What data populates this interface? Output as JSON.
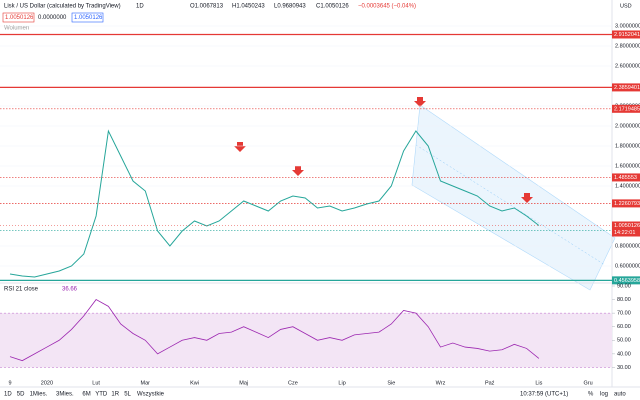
{
  "header": {
    "symbol": "Lisk / US Dollar (calculated by TradingView)",
    "interval": "1D",
    "open": "O1.0067813",
    "high": "H1.0450243",
    "low": "L0.9680943",
    "close": "C1.0050126",
    "change": "−0.0003645 (−0.04%)",
    "bid": "1.0050126",
    "spread": "0.0000000",
    "ask": "1.0050126",
    "volume": "Wolumen",
    "currency": "USD",
    "countdown": "14:22:01"
  },
  "toolbar": {
    "ranges": [
      "1D",
      "5D",
      "1Mies.",
      "3Mies.",
      "6M",
      "YTD",
      "1R",
      "5L",
      "Wszystkie"
    ],
    "clock": "10:37:59 (UTC+1)",
    "percent": "%",
    "log": "log",
    "auto": "auto"
  },
  "chart_data": {
    "type": "line",
    "color": "#26a69a",
    "categories": [
      "9",
      null,
      null,
      "2020",
      null,
      null,
      null,
      "Lut",
      null,
      null,
      null,
      "Mar",
      null,
      null,
      null,
      "Kwi",
      null,
      null,
      null,
      "Maj",
      null,
      null,
      null,
      "Cze",
      null,
      null,
      null,
      "Lip",
      null,
      null,
      null,
      "Sie",
      null,
      null,
      null,
      "Wrz",
      null,
      null,
      null,
      "Paź",
      null,
      null,
      null,
      "Lis"
    ],
    "values": [
      0.52,
      0.5,
      0.49,
      0.52,
      0.55,
      0.6,
      0.72,
      1.1,
      1.95,
      1.7,
      1.45,
      1.35,
      0.95,
      0.8,
      0.95,
      1.05,
      1.0,
      1.05,
      1.15,
      1.25,
      1.2,
      1.15,
      1.25,
      1.3,
      1.28,
      1.18,
      1.2,
      1.15,
      1.18,
      1.22,
      1.25,
      1.4,
      1.75,
      1.95,
      1.8,
      1.45,
      1.4,
      1.35,
      1.3,
      1.2,
      1.15,
      1.18,
      1.1,
      1.0050126
    ],
    "ylim": [
      0.45,
      3.26
    ],
    "yticks": [
      {
        "value": 0.6,
        "label": "0.6000000"
      },
      {
        "value": 0.8,
        "label": "0.8000000"
      },
      {
        "value": 1.4,
        "label": "1.4000000"
      },
      {
        "value": 1.6,
        "label": "1.6000000"
      },
      {
        "value": 1.8,
        "label": "1.8000000"
      },
      {
        "value": 2.0,
        "label": "2.0000000"
      },
      {
        "value": 2.2,
        "label": "2.2000000"
      },
      {
        "value": 2.6,
        "label": "2.6000000"
      },
      {
        "value": 2.8,
        "label": "2.8000000"
      },
      {
        "value": 3.0,
        "label": "3.0000000"
      }
    ],
    "next_month": "Gru",
    "levels": [
      {
        "value": 2.9152041,
        "color": "#e53935",
        "style": "solid"
      },
      {
        "value": 2.3859401,
        "color": "#e53935",
        "style": "solid"
      },
      {
        "value": 2.1719485,
        "color": "#e53935",
        "style": "dotted"
      },
      {
        "value": 1.485553,
        "color": "#e53935",
        "style": "dotted"
      },
      {
        "value": 1.2260793,
        "color": "#e53935",
        "style": "dotted"
      },
      {
        "value": 0.9556124,
        "color": "#26a69a",
        "style": "dotted"
      },
      {
        "value": 0.4563958,
        "color": "#26a69a",
        "style": "solid"
      }
    ],
    "rsi": {
      "label": "RSI 21 close",
      "color": "#9c27b0",
      "band": [
        30,
        70
      ],
      "ylim": [
        20,
        90
      ],
      "yticks": [
        {
          "value": 30,
          "label": "30.00"
        },
        {
          "value": 40,
          "label": "40.00"
        },
        {
          "value": 50,
          "label": "50.00"
        },
        {
          "value": 60,
          "label": "60.00"
        },
        {
          "value": 70,
          "label": "70.00"
        },
        {
          "value": 80,
          "label": "80.00"
        },
        {
          "value": 90,
          "label": "90.00"
        }
      ],
      "values": [
        38,
        35,
        40,
        45,
        50,
        58,
        68,
        80,
        75,
        62,
        55,
        50,
        40,
        45,
        50,
        52,
        50,
        55,
        56,
        60,
        56,
        52,
        58,
        60,
        55,
        50,
        52,
        50,
        54,
        55,
        56,
        62,
        72,
        70,
        60,
        45,
        48,
        45,
        44,
        42,
        43,
        47,
        44,
        36.66
      ]
    }
  }
}
